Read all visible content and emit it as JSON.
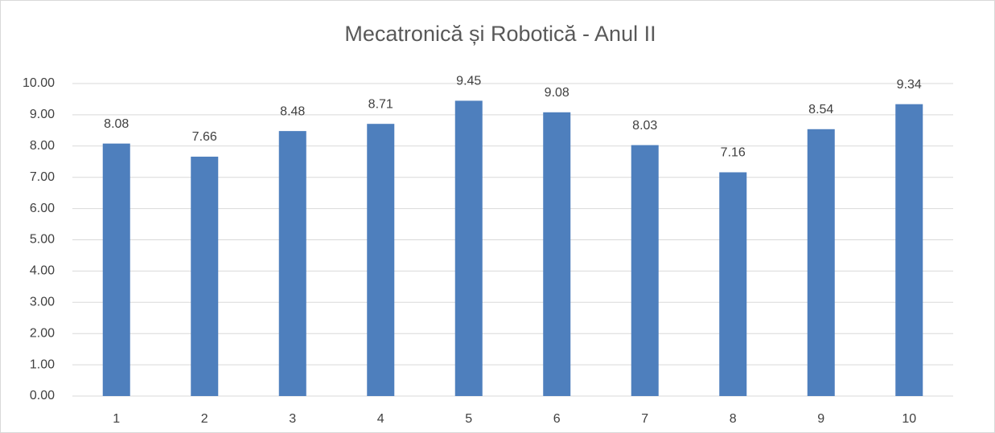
{
  "chart_data": {
    "type": "bar",
    "title": "Mecatronică și Robotică - Anul II",
    "categories": [
      "1",
      "2",
      "3",
      "4",
      "5",
      "6",
      "7",
      "8",
      "9",
      "10"
    ],
    "values": [
      8.08,
      7.66,
      8.48,
      8.71,
      9.45,
      9.08,
      8.03,
      7.16,
      8.54,
      9.34
    ],
    "color": "#4e7fbd",
    "ylim": [
      0,
      10
    ],
    "yticks": [
      {
        "value": 0,
        "label": "0.00"
      },
      {
        "value": 1,
        "label": "1.00"
      },
      {
        "value": 2,
        "label": "2.00"
      },
      {
        "value": 3,
        "label": "3.00"
      },
      {
        "value": 4,
        "label": "4.00"
      },
      {
        "value": 5,
        "label": "5.00"
      },
      {
        "value": 6,
        "label": "6.00"
      },
      {
        "value": 7,
        "label": "7.00"
      },
      {
        "value": 8,
        "label": "8.00"
      },
      {
        "value": 9,
        "label": "9.00"
      },
      {
        "value": 10,
        "label": "10.00"
      }
    ],
    "grid": true
  }
}
